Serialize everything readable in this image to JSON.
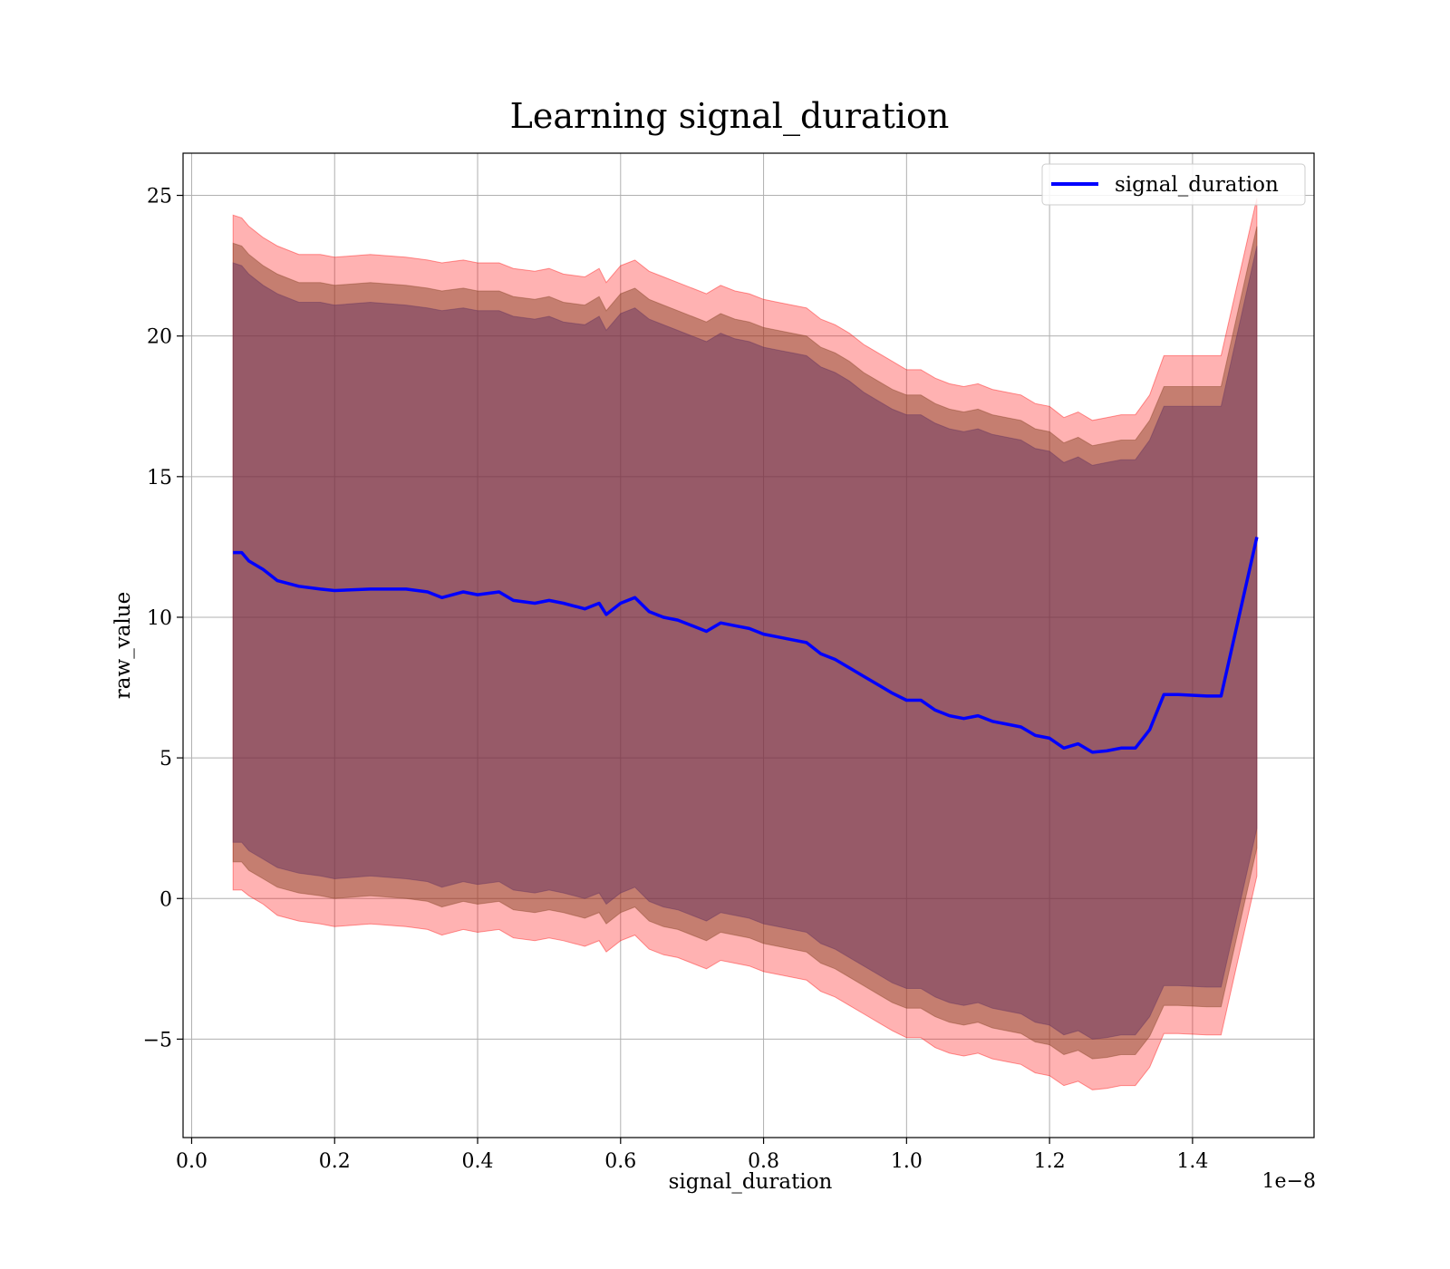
{
  "chart_data": {
    "type": "line",
    "title": "Learning signal_duration",
    "xlabel": "signal_duration",
    "ylabel": "raw_value",
    "x_offset_label": "1e−8",
    "xlim": [
      -0.012,
      1.57
    ],
    "ylim": [
      -8.5,
      26.5
    ],
    "xticks": [
      0.0,
      0.2,
      0.4,
      0.6,
      0.8,
      1.0,
      1.2,
      1.4
    ],
    "xtick_labels": [
      "0.0",
      "0.2",
      "0.4",
      "0.6",
      "0.8",
      "1.0",
      "1.2",
      "1.4"
    ],
    "yticks": [
      -5,
      0,
      5,
      10,
      15,
      20,
      25
    ],
    "ytick_labels": [
      "−5",
      "0",
      "5",
      "10",
      "15",
      "20",
      "25"
    ],
    "grid": true,
    "legend_position": "top-right",
    "series": [
      {
        "name": "signal_duration",
        "color": "#0000ff",
        "x": [
          0.058,
          0.07,
          0.08,
          0.1,
          0.12,
          0.15,
          0.18,
          0.2,
          0.25,
          0.3,
          0.33,
          0.35,
          0.38,
          0.4,
          0.43,
          0.45,
          0.48,
          0.5,
          0.52,
          0.55,
          0.57,
          0.58,
          0.6,
          0.62,
          0.64,
          0.66,
          0.68,
          0.7,
          0.72,
          0.74,
          0.76,
          0.78,
          0.8,
          0.82,
          0.84,
          0.86,
          0.88,
          0.9,
          0.92,
          0.94,
          0.96,
          0.98,
          1.0,
          1.02,
          1.04,
          1.06,
          1.08,
          1.1,
          1.12,
          1.14,
          1.16,
          1.18,
          1.2,
          1.22,
          1.24,
          1.26,
          1.28,
          1.3,
          1.32,
          1.34,
          1.36,
          1.38,
          1.42,
          1.44,
          1.49
        ],
        "values": [
          12.3,
          12.3,
          12.0,
          11.7,
          11.3,
          11.1,
          11.0,
          10.95,
          11.0,
          11.0,
          10.9,
          10.7,
          10.9,
          10.8,
          10.9,
          10.6,
          10.5,
          10.6,
          10.5,
          10.3,
          10.5,
          10.1,
          10.5,
          10.7,
          10.2,
          10.0,
          9.9,
          9.7,
          9.5,
          9.8,
          9.7,
          9.6,
          9.4,
          9.3,
          9.2,
          9.1,
          8.7,
          8.5,
          8.2,
          7.9,
          7.6,
          7.3,
          7.05,
          7.05,
          6.7,
          6.5,
          6.4,
          6.5,
          6.3,
          6.2,
          6.1,
          5.8,
          5.7,
          5.35,
          5.5,
          5.2,
          5.25,
          5.35,
          5.35,
          6.0,
          7.25,
          7.25,
          7.2,
          7.2,
          12.85
        ]
      }
    ],
    "bands": [
      {
        "color": "#ff0000",
        "opacity": 0.3,
        "upper": [
          24.3,
          24.2,
          23.9,
          23.5,
          23.2,
          22.9,
          22.9,
          22.8,
          22.9,
          22.8,
          22.7,
          22.6,
          22.7,
          22.6,
          22.6,
          22.4,
          22.3,
          22.4,
          22.2,
          22.1,
          22.4,
          21.9,
          22.5,
          22.7,
          22.3,
          22.1,
          21.9,
          21.7,
          21.5,
          21.8,
          21.6,
          21.5,
          21.3,
          21.2,
          21.1,
          21.0,
          20.6,
          20.4,
          20.1,
          19.7,
          19.4,
          19.1,
          18.8,
          18.8,
          18.5,
          18.3,
          18.2,
          18.3,
          18.1,
          18.0,
          17.9,
          17.6,
          17.5,
          17.1,
          17.3,
          17.0,
          17.1,
          17.2,
          17.2,
          17.9,
          19.3,
          19.3,
          19.3,
          19.3,
          24.9
        ],
        "lower": [
          0.3,
          0.3,
          0.1,
          -0.2,
          -0.6,
          -0.8,
          -0.9,
          -1.0,
          -0.9,
          -1.0,
          -1.1,
          -1.3,
          -1.1,
          -1.2,
          -1.1,
          -1.4,
          -1.5,
          -1.4,
          -1.5,
          -1.7,
          -1.5,
          -1.9,
          -1.5,
          -1.3,
          -1.8,
          -2.0,
          -2.1,
          -2.3,
          -2.5,
          -2.2,
          -2.3,
          -2.4,
          -2.6,
          -2.7,
          -2.8,
          -2.9,
          -3.3,
          -3.5,
          -3.8,
          -4.1,
          -4.4,
          -4.7,
          -4.95,
          -4.95,
          -5.3,
          -5.5,
          -5.6,
          -5.5,
          -5.7,
          -5.8,
          -5.9,
          -6.2,
          -6.3,
          -6.65,
          -6.5,
          -6.8,
          -6.75,
          -6.65,
          -6.65,
          -6.0,
          -4.8,
          -4.8,
          -4.85,
          -4.85,
          0.8
        ]
      },
      {
        "color": "#7f3f1f",
        "opacity": 0.45,
        "upper": [
          23.3,
          23.2,
          22.9,
          22.5,
          22.2,
          21.9,
          21.9,
          21.8,
          21.9,
          21.8,
          21.7,
          21.6,
          21.7,
          21.6,
          21.6,
          21.4,
          21.3,
          21.4,
          21.2,
          21.1,
          21.4,
          20.9,
          21.5,
          21.7,
          21.3,
          21.1,
          20.9,
          20.7,
          20.5,
          20.8,
          20.6,
          20.5,
          20.3,
          20.2,
          20.1,
          20.0,
          19.6,
          19.4,
          19.1,
          18.7,
          18.4,
          18.1,
          17.9,
          17.9,
          17.6,
          17.4,
          17.3,
          17.4,
          17.2,
          17.1,
          17.0,
          16.7,
          16.6,
          16.2,
          16.4,
          16.1,
          16.2,
          16.3,
          16.3,
          17.0,
          18.2,
          18.2,
          18.2,
          18.2,
          23.9
        ],
        "lower": [
          1.3,
          1.3,
          1.0,
          0.7,
          0.4,
          0.2,
          0.1,
          0.0,
          0.1,
          0.0,
          -0.1,
          -0.3,
          -0.1,
          -0.2,
          -0.1,
          -0.4,
          -0.5,
          -0.4,
          -0.5,
          -0.7,
          -0.5,
          -0.9,
          -0.5,
          -0.3,
          -0.8,
          -1.0,
          -1.1,
          -1.3,
          -1.5,
          -1.2,
          -1.3,
          -1.4,
          -1.6,
          -1.7,
          -1.8,
          -1.9,
          -2.3,
          -2.5,
          -2.8,
          -3.1,
          -3.4,
          -3.7,
          -3.9,
          -3.9,
          -4.2,
          -4.4,
          -4.5,
          -4.4,
          -4.6,
          -4.7,
          -4.8,
          -5.1,
          -5.2,
          -5.55,
          -5.4,
          -5.7,
          -5.65,
          -5.55,
          -5.55,
          -4.9,
          -3.8,
          -3.8,
          -3.85,
          -3.85,
          1.8
        ]
      },
      {
        "color": "#5f2f5f",
        "opacity": 0.45,
        "upper": [
          22.6,
          22.5,
          22.2,
          21.8,
          21.5,
          21.2,
          21.2,
          21.1,
          21.2,
          21.1,
          21.0,
          20.9,
          21.0,
          20.9,
          20.9,
          20.7,
          20.6,
          20.7,
          20.5,
          20.4,
          20.7,
          20.2,
          20.8,
          21.0,
          20.6,
          20.4,
          20.2,
          20.0,
          19.8,
          20.1,
          19.9,
          19.8,
          19.6,
          19.5,
          19.4,
          19.3,
          18.9,
          18.7,
          18.4,
          18.0,
          17.7,
          17.4,
          17.2,
          17.2,
          16.9,
          16.7,
          16.6,
          16.7,
          16.5,
          16.4,
          16.3,
          16.0,
          15.9,
          15.5,
          15.7,
          15.4,
          15.5,
          15.6,
          15.6,
          16.3,
          17.5,
          17.5,
          17.5,
          17.5,
          23.2
        ],
        "lower": [
          2.0,
          2.0,
          1.7,
          1.4,
          1.1,
          0.9,
          0.8,
          0.7,
          0.8,
          0.7,
          0.6,
          0.4,
          0.6,
          0.5,
          0.6,
          0.3,
          0.2,
          0.3,
          0.2,
          0.0,
          0.2,
          -0.2,
          0.2,
          0.4,
          -0.1,
          -0.3,
          -0.4,
          -0.6,
          -0.8,
          -0.5,
          -0.6,
          -0.7,
          -0.9,
          -1.0,
          -1.1,
          -1.2,
          -1.6,
          -1.8,
          -2.1,
          -2.4,
          -2.7,
          -3.0,
          -3.2,
          -3.2,
          -3.5,
          -3.7,
          -3.8,
          -3.7,
          -3.9,
          -4.0,
          -4.1,
          -4.4,
          -4.5,
          -4.85,
          -4.7,
          -5.0,
          -4.95,
          -4.85,
          -4.85,
          -4.2,
          -3.1,
          -3.1,
          -3.15,
          -3.15,
          2.5
        ]
      }
    ]
  }
}
